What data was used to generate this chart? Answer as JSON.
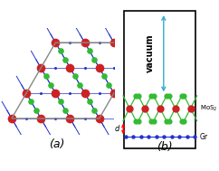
{
  "fig_width": 2.42,
  "fig_height": 1.89,
  "dpi": 100,
  "background_color": "#ffffff",
  "panel_a_label": "(a)",
  "panel_b_label": "(b)",
  "mo_color": "#cc2222",
  "s_color": "#33bb33",
  "c_color": "#2233cc",
  "bond_color": "#2233cc",
  "frame_color": "#888888",
  "vacuum_arrow_color": "#33aacc",
  "vacuum_text": "vacuum",
  "mos2_label": "MoS$_2$",
  "gr_label": "Gr",
  "d_label": "d"
}
